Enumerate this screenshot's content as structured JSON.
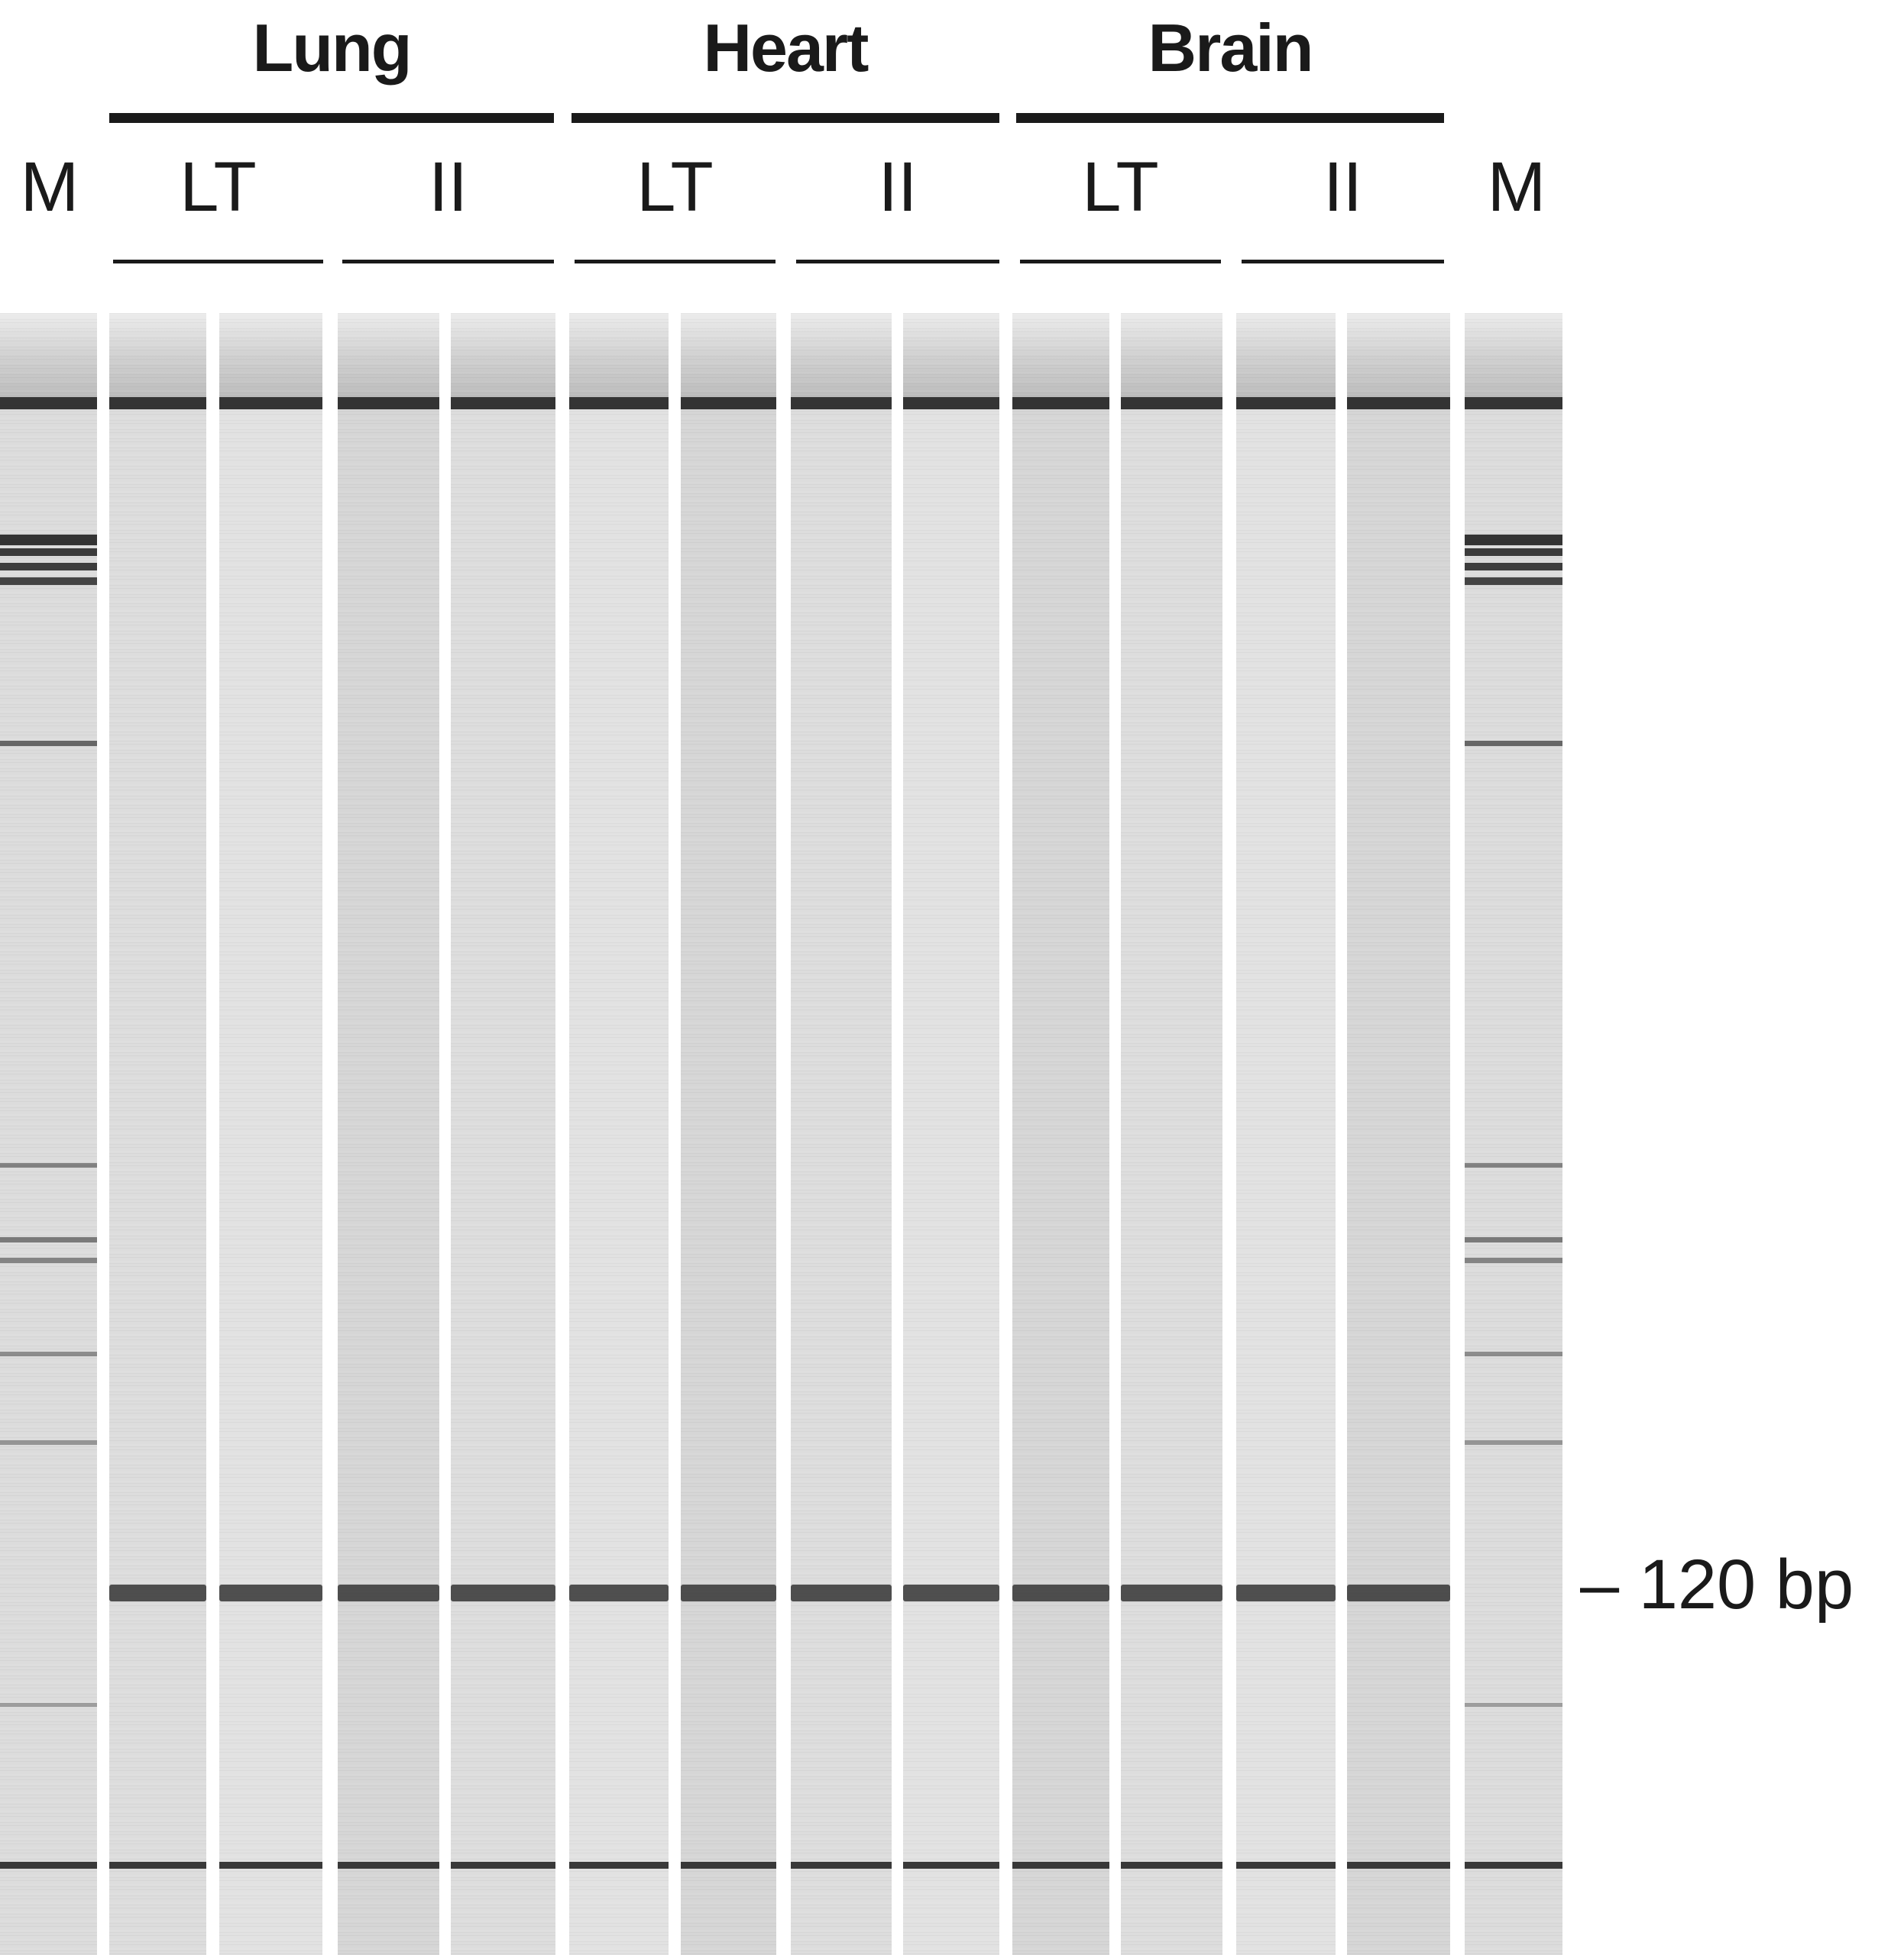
{
  "tissues": [
    {
      "name": "Lung",
      "conditions": [
        "LT",
        "II"
      ]
    },
    {
      "name": "Heart",
      "conditions": [
        "LT",
        "II"
      ]
    },
    {
      "name": "Brain",
      "conditions": [
        "LT",
        "II"
      ]
    }
  ],
  "marker_label": "M",
  "size_label": "– 120 bp",
  "colors": {
    "gel_background": "#dcdcdc",
    "band": "#2a2a2a",
    "text": "#1a1a1a"
  }
}
